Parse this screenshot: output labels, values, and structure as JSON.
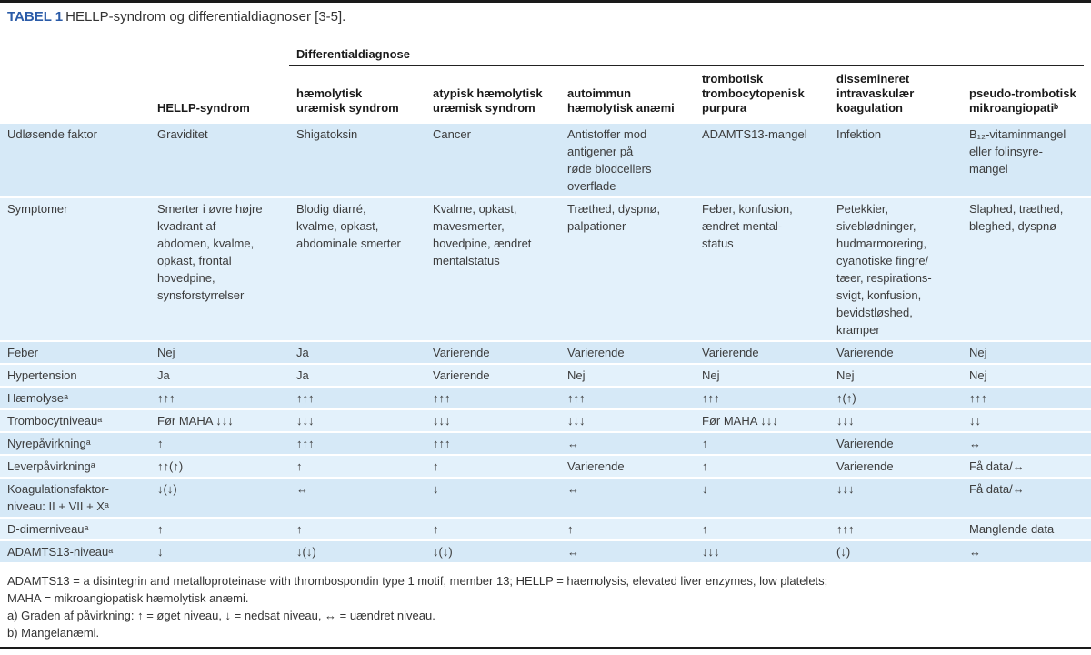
{
  "title": {
    "label": "TABEL 1",
    "text": "HELLP-syndrom og differentialdiagnoser [3-5]."
  },
  "table": {
    "group_header": "Differentialdiagnose",
    "columns": [
      "",
      "HELLP-syndrom",
      "hæmolytisk\nuræmisk syndrom",
      "atypisk hæmolytisk\nuræmisk syndrom",
      "autoimmun\nhæmolytisk anæmi",
      "trombotisk\ntrombocytopenisk\npurpura",
      "dissemineret\nintravaskulær\nkoagulation",
      "pseudo-trombotisk\nmikroangiopatiᵇ"
    ],
    "rows": [
      {
        "label": "Udløsende faktor",
        "cells": [
          "Graviditet",
          "Shigatoksin",
          "Cancer",
          "Antistoffer mod\nantigener på\nrøde blodcellers\noverflade",
          "ADAMTS13-mangel",
          "Infektion",
          "B₁₂-vitaminmangel\neller folinsyre-\nmangel"
        ]
      },
      {
        "label": "Symptomer",
        "cells": [
          "Smerter i øvre højre\nkvadrant af\nabdomen, kvalme,\nopkast, frontal\nhovedpine,\nsynsforstyrrelser",
          "Blodig diarré,\nkvalme, opkast,\nabdominale smerter",
          "Kvalme, opkast,\nmavesmerter,\nhovedpine, ændret\nmentalstatus",
          "Træthed, dyspnø,\npalpationer",
          "Feber, konfusion,\nændret mental-\nstatus",
          "Petekkier,\nsiveblødninger,\nhudmarmorering,\ncyanotiske fingre/\ntæer, respirations-\nsvigt, konfusion,\nbevidstløshed,\nkramper",
          "Slaphed, træthed,\nbleghed, dyspnø"
        ]
      },
      {
        "label": "Feber",
        "cells": [
          "Nej",
          "Ja",
          "Varierende",
          "Varierende",
          "Varierende",
          "Varierende",
          "Nej"
        ]
      },
      {
        "label": "Hypertension",
        "cells": [
          "Ja",
          "Ja",
          "Varierende",
          "Nej",
          "Nej",
          "Nej",
          "Nej"
        ]
      },
      {
        "label": "Hæmolyseᵃ",
        "cells": [
          "↑↑↑",
          "↑↑↑",
          "↑↑↑",
          "↑↑↑",
          "↑↑↑",
          "↑(↑)",
          "↑↑↑"
        ]
      },
      {
        "label": "Trombocytniveauᵃ",
        "cells": [
          "Før MAHA ↓↓↓",
          "↓↓↓",
          "↓↓↓",
          "↓↓↓",
          "Før MAHA ↓↓↓",
          "↓↓↓",
          "↓↓"
        ]
      },
      {
        "label": "Nyrepåvirkningᵃ",
        "cells": [
          "↑",
          "↑↑↑",
          "↑↑↑",
          "↔",
          "↑",
          "Varierende",
          "↔"
        ]
      },
      {
        "label": "Leverpåvirkningᵃ",
        "cells": [
          "↑↑(↑)",
          "↑",
          "↑",
          "Varierende",
          "↑",
          "Varierende",
          "Få data/↔"
        ]
      },
      {
        "label": "Koagulationsfaktor-\nniveau: II + VII + Xᵃ",
        "cells": [
          "↓(↓)",
          "↔",
          "↓",
          "↔",
          "↓",
          "↓↓↓",
          "Få data/↔"
        ]
      },
      {
        "label": "D-dimerniveauᵃ",
        "cells": [
          "↑",
          "↑",
          "↑",
          "↑",
          "↑",
          "↑↑↑",
          "Manglende data"
        ]
      },
      {
        "label": "ADAMTS13-niveauᵃ",
        "cells": [
          "↓",
          "↓(↓)",
          "↓(↓)",
          "↔",
          "↓↓↓",
          "(↓)",
          "↔"
        ]
      }
    ]
  },
  "footnotes": [
    "ADAMTS13 = a disintegrin and metalloproteinase with thrombospondin type 1 motif, member 13; HELLP = haemolysis, elevated liver enzymes, low platelets;",
    "MAHA = mikroangiopatisk hæmolytisk anæmi.",
    "a) Graden af påvirkning: ↑ = øget niveau, ↓ = nedsat niveau, ↔ = uændret niveau.",
    "b) Mangelanæmi."
  ],
  "colors": {
    "row_shade_a": "#d6e9f7",
    "row_shade_b": "#e3f1fb",
    "title_accent": "#2a5ba8",
    "rule": "#1a1a1a"
  }
}
